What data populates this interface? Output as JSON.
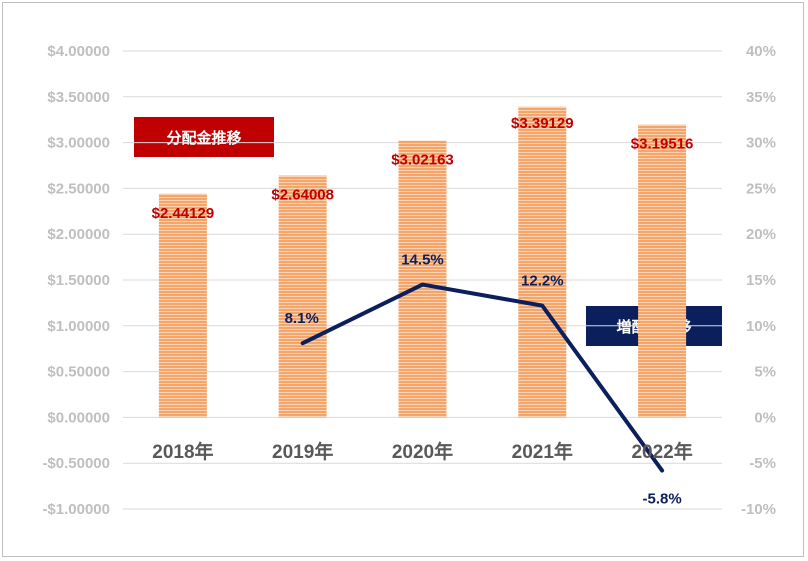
{
  "chart_data": {
    "type": "bar+line",
    "categories": [
      "2018年",
      "2019年",
      "2020年",
      "2021年",
      "2022年"
    ],
    "series": [
      {
        "name": "分配金推移",
        "type": "bar",
        "axis": "left",
        "values": [
          2.44129,
          2.64008,
          3.02163,
          3.39129,
          3.19516
        ],
        "labels": [
          "$2.44129",
          "$2.64008",
          "$3.02163",
          "$3.39129",
          "$3.19516"
        ],
        "color": "#f4a56a"
      },
      {
        "name": "増配率推移",
        "type": "line",
        "axis": "right",
        "x": [
          "2019年",
          "2020年",
          "2021年",
          "2022年"
        ],
        "values": [
          8.1,
          14.5,
          12.2,
          -5.8
        ],
        "labels": [
          "8.1%",
          "14.5%",
          "12.2%",
          "-5.8%"
        ],
        "color": "#0b1f5c"
      }
    ],
    "y_left": {
      "ylim": [
        -1.0,
        4.0
      ],
      "ticks": [
        4.0,
        3.5,
        3.0,
        2.5,
        2.0,
        1.5,
        1.0,
        0.5,
        0.0,
        -0.5,
        -1.0
      ],
      "tick_labels": [
        "$4.00000",
        "$3.50000",
        "$3.00000",
        "$2.50000",
        "$2.00000",
        "$1.50000",
        "$1.00000",
        "$0.50000",
        "$0.00000",
        "-$0.50000",
        "-$1.00000"
      ]
    },
    "y_right": {
      "ylim": [
        -10,
        40
      ],
      "ticks": [
        40,
        35,
        30,
        25,
        20,
        15,
        10,
        5,
        0,
        -5,
        -10
      ],
      "tick_labels": [
        "40%",
        "35%",
        "30%",
        "25%",
        "20%",
        "15%",
        "10%",
        "5%",
        "0%",
        "-5%",
        "-10%"
      ]
    },
    "grid": true,
    "legend_labels": {
      "bars": "分配金推移",
      "line": "増配率推移"
    }
  },
  "colors": {
    "bar_fill": "#f4a56a",
    "bar_stripe": "#fbd3b4",
    "bar_label": "#c00000",
    "line": "#0b1f5c",
    "grid": "#d9d9d9",
    "axis_tick_text": "#bfbfbf",
    "category_text": "#595959"
  }
}
